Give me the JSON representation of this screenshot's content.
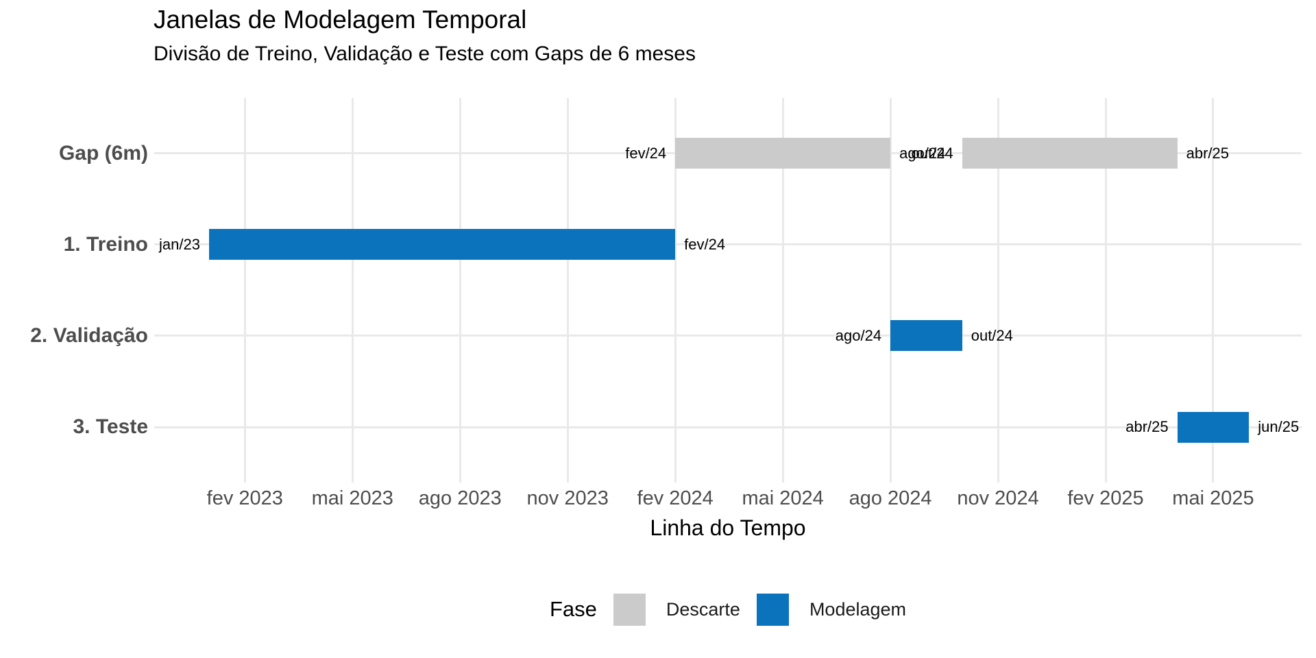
{
  "page": {
    "background": "#FFFFFF"
  },
  "chart_data": {
    "type": "bar",
    "variant": "horizontal-gantt-timeline",
    "title": "Janelas de Modelagem Temporal",
    "subtitle": "Divisão de Treino, Validação e Teste com Gaps de 6 meses",
    "xlabel": "Linha do Tempo",
    "grid": true,
    "legend_position": "bottom",
    "colors": {
      "grid": "#E9E9E9",
      "axis_text": "#4D4D4D",
      "bar_label": "#000000"
    },
    "axis": {
      "x_unit": "months since jan/2023",
      "x_ticks": [
        {
          "label": "fev 2023",
          "month": 1
        },
        {
          "label": "mai 2023",
          "month": 4
        },
        {
          "label": "ago 2023",
          "month": 7
        },
        {
          "label": "nov 2023",
          "month": 10
        },
        {
          "label": "fev 2024",
          "month": 13
        },
        {
          "label": "mai 2024",
          "month": 16
        },
        {
          "label": "ago 2024",
          "month": 19
        },
        {
          "label": "nov 2024",
          "month": 22
        },
        {
          "label": "fev 2025",
          "month": 25
        },
        {
          "label": "mai 2025",
          "month": 28
        }
      ]
    },
    "rows": [
      {
        "label": "Gap (6m)"
      },
      {
        "label": "1. Treino"
      },
      {
        "label": "2. Validação"
      },
      {
        "label": "3. Teste"
      }
    ],
    "phases": {
      "Descarte": "#CBCBCB",
      "Modelagem": "#0B73BB"
    },
    "legend": {
      "title": "Fase",
      "entries": [
        {
          "label": "Descarte",
          "color": "#CBCBCB"
        },
        {
          "label": "Modelagem",
          "color": "#0B73BB"
        }
      ]
    },
    "bars": [
      {
        "row": 0,
        "phase": "Descarte",
        "start_label": "fev/24",
        "end_label": "ago/24",
        "start_month": 13,
        "end_month": 19
      },
      {
        "row": 0,
        "phase": "Descarte",
        "start_label": "out/24",
        "end_label": "abr/25",
        "start_month": 21,
        "end_month": 27
      },
      {
        "row": 1,
        "phase": "Modelagem",
        "start_label": "jan/23",
        "end_label": "fev/24",
        "start_month": 0,
        "end_month": 13
      },
      {
        "row": 2,
        "phase": "Modelagem",
        "start_label": "ago/24",
        "end_label": "out/24",
        "start_month": 19,
        "end_month": 21
      },
      {
        "row": 3,
        "phase": "Modelagem",
        "start_label": "abr/25",
        "end_label": "jun/25",
        "start_month": 27,
        "end_month": 29
      }
    ]
  }
}
